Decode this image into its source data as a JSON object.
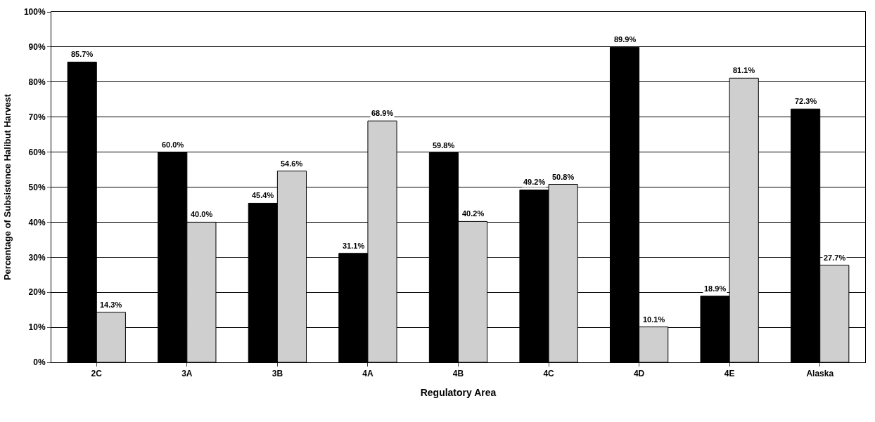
{
  "chart_data": {
    "type": "bar",
    "xlabel": "Regulatory Area",
    "ylabel": "Percentage of Subsistence Halibut Harvest",
    "categories": [
      "2C",
      "3A",
      "3B",
      "4A",
      "4B",
      "4C",
      "4D",
      "4E",
      "Alaska"
    ],
    "series": [
      {
        "color": "#000000",
        "values": [
          85.7,
          60.0,
          45.4,
          31.1,
          59.8,
          49.2,
          89.9,
          18.9,
          72.3
        ],
        "value_labels": [
          "85.7%",
          "60.0%",
          "45.4%",
          "31.1%",
          "59.8%",
          "49.2%",
          "89.9%",
          "18.9%",
          "72.3%"
        ]
      },
      {
        "color": "#cfcfcf",
        "values": [
          14.3,
          40.0,
          54.6,
          68.9,
          40.2,
          50.8,
          10.1,
          81.1,
          27.7
        ],
        "value_labels": [
          "14.3%",
          "40.0%",
          "54.6%",
          "68.9%",
          "40.2%",
          "50.8%",
          "10.1%",
          "81.1%",
          "27.7%"
        ]
      }
    ],
    "ylim": [
      0,
      100
    ],
    "yticks": [
      {
        "value": 0,
        "label": "0%"
      },
      {
        "value": 10,
        "label": "10%"
      },
      {
        "value": 20,
        "label": "20%"
      },
      {
        "value": 30,
        "label": "30%"
      },
      {
        "value": 40,
        "label": "40%"
      },
      {
        "value": 50,
        "label": "50%"
      },
      {
        "value": 60,
        "label": "60%"
      },
      {
        "value": 70,
        "label": "70%"
      },
      {
        "value": 80,
        "label": "80%"
      },
      {
        "value": 90,
        "label": "90%"
      },
      {
        "value": 100,
        "label": "100%"
      }
    ],
    "grid": "y",
    "legend": false
  }
}
